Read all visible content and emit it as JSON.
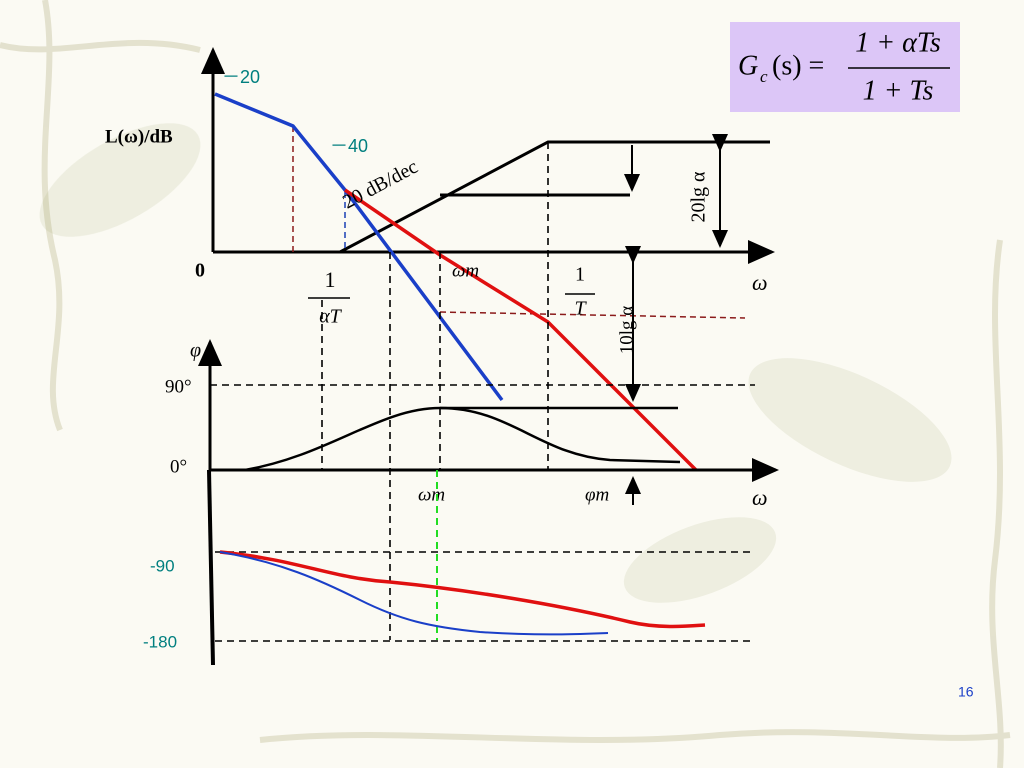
{
  "slope_labels": {
    "upper": "－20",
    "lower": "－40"
  },
  "magnitude_axis": {
    "label": "L(ω)/dB",
    "origin": "0",
    "x_label": "ω",
    "slope_text": "20 dB/dec"
  },
  "break_points": {
    "first_numerator": "1",
    "first_denominator": "αT",
    "second_numerator": "1",
    "second_denominator": "T",
    "center": "ωm"
  },
  "gain_marks": {
    "full": "20lg α",
    "half": "10lg α"
  },
  "phase_axis": {
    "label": "φ",
    "ninety": "90°",
    "zero": "0°",
    "x_label": "ω",
    "center": "ωm",
    "peak": "φm"
  },
  "system_phase": {
    "minus_ninety": "-90",
    "minus_one_eighty": "-180"
  },
  "formula": {
    "lhs": "G",
    "subscript": "c",
    "argument": "(s) =",
    "numerator": "1 + αTs",
    "denominator": "1 + Ts"
  },
  "page_number": "16"
}
